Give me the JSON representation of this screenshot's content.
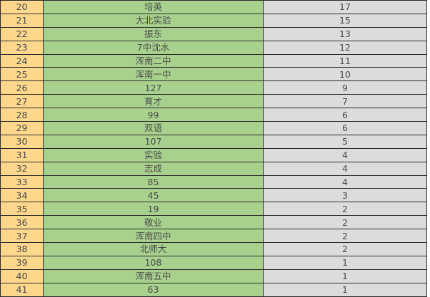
{
  "rows": [
    {
      "index": "20",
      "name": "培英",
      "count": "17"
    },
    {
      "index": "21",
      "name": "大北实验",
      "count": "15"
    },
    {
      "index": "22",
      "name": "振东",
      "count": "13"
    },
    {
      "index": "23",
      "name": "7中沈水",
      "count": "12"
    },
    {
      "index": "24",
      "name": "浑南二中",
      "count": "11"
    },
    {
      "index": "25",
      "name": "浑南一中",
      "count": "10"
    },
    {
      "index": "26",
      "name": "127",
      "count": "9"
    },
    {
      "index": "27",
      "name": "育才",
      "count": "7"
    },
    {
      "index": "28",
      "name": "99",
      "count": "6"
    },
    {
      "index": "29",
      "name": "双语",
      "count": "6"
    },
    {
      "index": "30",
      "name": "107",
      "count": "5"
    },
    {
      "index": "31",
      "name": "实验",
      "count": "4"
    },
    {
      "index": "32",
      "name": "志成",
      "count": "4"
    },
    {
      "index": "33",
      "name": "85",
      "count": "4"
    },
    {
      "index": "34",
      "name": "45",
      "count": "3"
    },
    {
      "index": "35",
      "name": "19",
      "count": "2"
    },
    {
      "index": "36",
      "name": "敬业",
      "count": "2"
    },
    {
      "index": "37",
      "name": "浑南四中",
      "count": "2"
    },
    {
      "index": "38",
      "name": "北师大",
      "count": "2"
    },
    {
      "index": "39",
      "name": "108",
      "count": "1"
    },
    {
      "index": "40",
      "name": "浑南五中",
      "count": "1"
    },
    {
      "index": "41",
      "name": "63",
      "count": "1"
    }
  ],
  "colors": {
    "index_bg": "#fdd88c",
    "name_bg": "#a9d18e",
    "count_bg": "#dcdcdc"
  }
}
